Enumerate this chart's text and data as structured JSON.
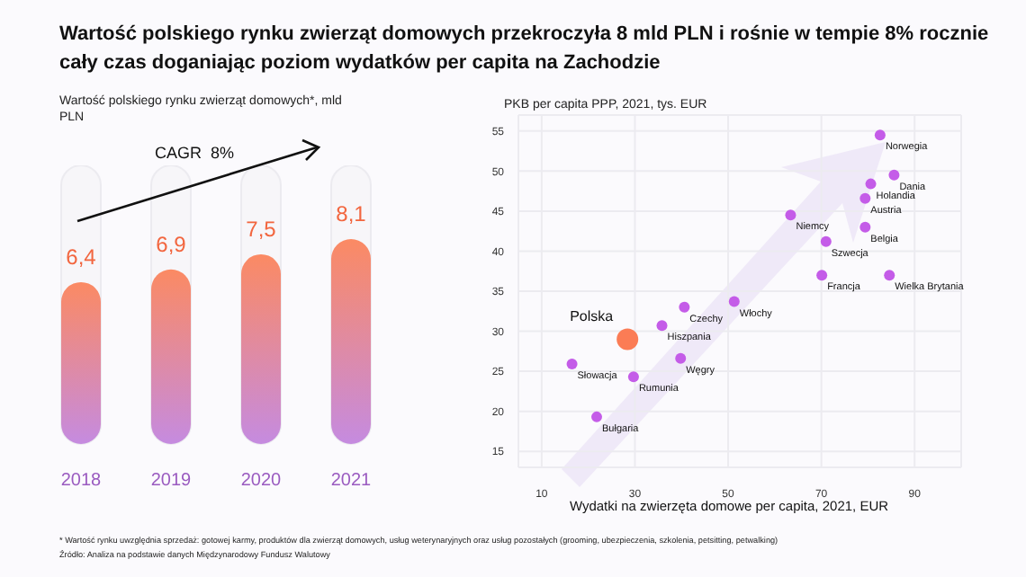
{
  "chart_data": [
    {
      "type": "bar",
      "title": "Wartość polskiego rynku zwierząt domowych przekroczyła 8 mld PLN i rośnie w tempie 8% rocznie cały czas doganiając poziom wydatków per capita na Zachodzie",
      "subtitle": "Wartość polskiego rynku zwierząt domowych*, mld PLN",
      "categories": [
        "2018",
        "2019",
        "2020",
        "2021"
      ],
      "series": [
        {
          "color": "#fb8a63",
          "values": [
            6.4,
            6.9,
            7.5,
            8.1
          ],
          "value_labels": [
            "6,4",
            "6,9",
            "7,5",
            "8,1"
          ]
        }
      ],
      "annotations": [
        "CAGR  8%",
        "* Wartość rynku uwzględnia sprzedaż: gotowej karmy, produktów dla zwierząt domowych, usług weterynaryjnych oraz usług pozostałych (grooming, ubezpieczenia, szkolenia, petsitting, petwalking)",
        "Źródło: Analiza na podstawie danych Międzynarodowy Fundusz Walutowy"
      ]
    },
    {
      "type": "bubble",
      "ylabel": "PKB per capita PPP, 2021, tys. EUR",
      "xlabel": "Wydatki na zwierzęta domowe per capita, 2021, EUR",
      "xlim": [
        5,
        100
      ],
      "ylim": [
        13,
        57
      ],
      "xticks": [
        10,
        30,
        50,
        70,
        90
      ],
      "yticks": [
        15,
        20,
        25,
        30,
        35,
        40,
        45,
        50,
        55
      ],
      "grid": true,
      "series": [
        {
          "name": "Norwegia",
          "color": "#c45ce8",
          "x": [
            82.6
          ],
          "values": [
            54.5
          ],
          "sizes": [
            0.25
          ]
        },
        {
          "name": "Dania",
          "color": "#c45ce8",
          "x": [
            85.6
          ],
          "values": [
            49.5
          ],
          "sizes": [
            0.25
          ]
        },
        {
          "name": "Holandia",
          "color": "#c45ce8",
          "x": [
            80.6
          ],
          "values": [
            48.4
          ],
          "sizes": [
            0.25
          ]
        },
        {
          "name": "Austria",
          "color": "#c45ce8",
          "x": [
            79.4
          ],
          "values": [
            46.6
          ],
          "sizes": [
            0.25
          ]
        },
        {
          "name": "Niemcy",
          "color": "#c45ce8",
          "x": [
            63.4
          ],
          "values": [
            44.5
          ],
          "sizes": [
            0.25
          ]
        },
        {
          "name": "Belgia",
          "color": "#c45ce8",
          "x": [
            79.4
          ],
          "values": [
            43
          ],
          "sizes": [
            0.25
          ]
        },
        {
          "name": "Szwecja",
          "color": "#c45ce8",
          "x": [
            71
          ],
          "values": [
            41.2
          ],
          "sizes": [
            0.25
          ]
        },
        {
          "name": "Francja",
          "color": "#c45ce8",
          "x": [
            70.1
          ],
          "values": [
            37
          ],
          "sizes": [
            0.25
          ]
        },
        {
          "name": "Wielka Brytania",
          "color": "#c45ce8",
          "x": [
            84.6
          ],
          "values": [
            37
          ],
          "sizes": [
            0.25
          ]
        },
        {
          "name": "Włochy",
          "color": "#c45ce8",
          "x": [
            51.3
          ],
          "values": [
            33.7
          ],
          "sizes": [
            0.25
          ]
        },
        {
          "name": "Czechy",
          "color": "#c45ce8",
          "x": [
            40.6
          ],
          "values": [
            33
          ],
          "sizes": [
            0.25
          ]
        },
        {
          "name": "Hiszpania",
          "color": "#c45ce8",
          "x": [
            35.8
          ],
          "values": [
            30.7
          ],
          "sizes": [
            0.25
          ]
        },
        {
          "name": "Polska",
          "color": "#fb7c55",
          "x": [
            28.4
          ],
          "values": [
            29
          ],
          "sizes": [
            1
          ]
        },
        {
          "name": "Węgry",
          "color": "#c45ce8",
          "x": [
            39.8
          ],
          "values": [
            26.6
          ],
          "sizes": [
            0.25
          ]
        },
        {
          "name": "Słowacja",
          "color": "#c45ce8",
          "x": [
            16.5
          ],
          "values": [
            25.9
          ],
          "sizes": [
            0.25
          ]
        },
        {
          "name": "Rumunia",
          "color": "#c45ce8",
          "x": [
            29.7
          ],
          "values": [
            24.3
          ],
          "sizes": [
            0.25
          ]
        },
        {
          "name": "Bułgaria",
          "color": "#c45ce8",
          "x": [
            21.8
          ],
          "values": [
            19.3
          ],
          "sizes": [
            0.25
          ]
        }
      ]
    }
  ]
}
